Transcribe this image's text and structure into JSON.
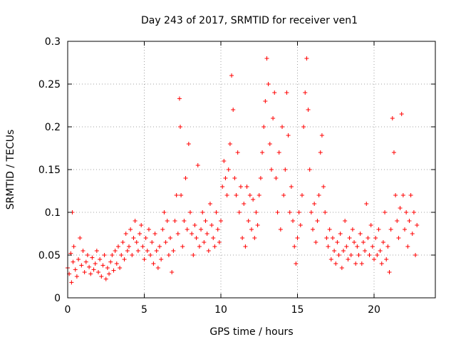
{
  "chart_data": {
    "type": "scatter",
    "title": "Day 243 of 2017, SRMTID for receiver ven1",
    "xlabel": "GPS time / hours",
    "ylabel": "SRMTID / TECUs",
    "xlim": [
      0,
      24
    ],
    "ylim": [
      0,
      0.3
    ],
    "xticks": [
      0,
      5,
      10,
      15,
      20
    ],
    "xtick_labels": [
      "0",
      "5",
      "10",
      "15",
      "20"
    ],
    "yticks": [
      0,
      0.05,
      0.1,
      0.15,
      0.2,
      0.25,
      0.3
    ],
    "ytick_labels": [
      "0",
      "0.05",
      "0.1",
      "0.15",
      "0.2",
      "0.25",
      "0.3"
    ],
    "grid": true,
    "marker": "+",
    "color": "#ff0000",
    "series": [
      {
        "name": "SRMTID ven1",
        "points": [
          [
            0.0,
            0.035
          ],
          [
            0.1,
            0.028
          ],
          [
            0.2,
            0.052
          ],
          [
            0.25,
            0.018
          ],
          [
            0.3,
            0.1
          ],
          [
            0.35,
            0.042
          ],
          [
            0.4,
            0.06
          ],
          [
            0.5,
            0.033
          ],
          [
            0.6,
            0.025
          ],
          [
            0.7,
            0.045
          ],
          [
            0.8,
            0.07
          ],
          [
            0.9,
            0.038
          ],
          [
            1.0,
            0.055
          ],
          [
            1.1,
            0.03
          ],
          [
            1.2,
            0.042
          ],
          [
            1.3,
            0.05
          ],
          [
            1.4,
            0.036
          ],
          [
            1.5,
            0.028
          ],
          [
            1.6,
            0.047
          ],
          [
            1.7,
            0.033
          ],
          [
            1.8,
            0.04
          ],
          [
            1.9,
            0.055
          ],
          [
            2.0,
            0.03
          ],
          [
            2.1,
            0.045
          ],
          [
            2.2,
            0.025
          ],
          [
            2.3,
            0.038
          ],
          [
            2.4,
            0.05
          ],
          [
            2.5,
            0.022
          ],
          [
            2.6,
            0.035
          ],
          [
            2.7,
            0.028
          ],
          [
            2.8,
            0.042
          ],
          [
            2.9,
            0.05
          ],
          [
            3.0,
            0.032
          ],
          [
            3.1,
            0.055
          ],
          [
            3.2,
            0.04
          ],
          [
            3.3,
            0.06
          ],
          [
            3.4,
            0.035
          ],
          [
            3.5,
            0.05
          ],
          [
            3.6,
            0.065
          ],
          [
            3.7,
            0.045
          ],
          [
            3.8,
            0.075
          ],
          [
            3.9,
            0.055
          ],
          [
            4.0,
            0.06
          ],
          [
            4.1,
            0.08
          ],
          [
            4.2,
            0.05
          ],
          [
            4.3,
            0.07
          ],
          [
            4.4,
            0.09
          ],
          [
            4.5,
            0.065
          ],
          [
            4.6,
            0.055
          ],
          [
            4.7,
            0.075
          ],
          [
            4.8,
            0.085
          ],
          [
            4.9,
            0.06
          ],
          [
            5.0,
            0.045
          ],
          [
            5.1,
            0.07
          ],
          [
            5.2,
            0.055
          ],
          [
            5.3,
            0.08
          ],
          [
            5.4,
            0.05
          ],
          [
            5.5,
            0.065
          ],
          [
            5.6,
            0.04
          ],
          [
            5.7,
            0.075
          ],
          [
            5.8,
            0.055
          ],
          [
            5.9,
            0.035
          ],
          [
            6.0,
            0.06
          ],
          [
            6.1,
            0.045
          ],
          [
            6.2,
            0.08
          ],
          [
            6.3,
            0.1
          ],
          [
            6.4,
            0.065
          ],
          [
            6.5,
            0.09
          ],
          [
            6.6,
            0.05
          ],
          [
            6.7,
            0.07
          ],
          [
            6.8,
            0.03
          ],
          [
            6.9,
            0.055
          ],
          [
            7.0,
            0.09
          ],
          [
            7.1,
            0.12
          ],
          [
            7.2,
            0.075
          ],
          [
            7.3,
            0.233
          ],
          [
            7.35,
            0.2
          ],
          [
            7.4,
            0.12
          ],
          [
            7.5,
            0.06
          ],
          [
            7.6,
            0.09
          ],
          [
            7.7,
            0.14
          ],
          [
            7.8,
            0.08
          ],
          [
            7.9,
            0.18
          ],
          [
            8.0,
            0.1
          ],
          [
            8.1,
            0.075
          ],
          [
            8.2,
            0.05
          ],
          [
            8.3,
            0.085
          ],
          [
            8.4,
            0.07
          ],
          [
            8.5,
            0.155
          ],
          [
            8.6,
            0.06
          ],
          [
            8.7,
            0.08
          ],
          [
            8.8,
            0.1
          ],
          [
            8.9,
            0.065
          ],
          [
            9.0,
            0.09
          ],
          [
            9.1,
            0.075
          ],
          [
            9.2,
            0.055
          ],
          [
            9.3,
            0.11
          ],
          [
            9.4,
            0.085
          ],
          [
            9.5,
            0.07
          ],
          [
            9.6,
            0.06
          ],
          [
            9.7,
            0.1
          ],
          [
            9.8,
            0.08
          ],
          [
            9.9,
            0.065
          ],
          [
            10.0,
            0.09
          ],
          [
            10.1,
            0.13
          ],
          [
            10.2,
            0.16
          ],
          [
            10.3,
            0.14
          ],
          [
            10.4,
            0.12
          ],
          [
            10.5,
            0.15
          ],
          [
            10.6,
            0.18
          ],
          [
            10.7,
            0.26
          ],
          [
            10.8,
            0.22
          ],
          [
            10.9,
            0.14
          ],
          [
            11.0,
            0.12
          ],
          [
            11.1,
            0.17
          ],
          [
            11.2,
            0.1
          ],
          [
            11.3,
            0.13
          ],
          [
            11.4,
            0.07
          ],
          [
            11.5,
            0.11
          ],
          [
            11.6,
            0.06
          ],
          [
            11.7,
            0.13
          ],
          [
            11.8,
            0.09
          ],
          [
            11.9,
            0.12
          ],
          [
            12.0,
            0.08
          ],
          [
            12.1,
            0.115
          ],
          [
            12.2,
            0.07
          ],
          [
            12.3,
            0.1
          ],
          [
            12.4,
            0.085
          ],
          [
            12.5,
            0.12
          ],
          [
            12.6,
            0.14
          ],
          [
            12.7,
            0.17
          ],
          [
            12.8,
            0.2
          ],
          [
            12.9,
            0.23
          ],
          [
            13.0,
            0.28
          ],
          [
            13.1,
            0.25
          ],
          [
            13.2,
            0.18
          ],
          [
            13.3,
            0.15
          ],
          [
            13.4,
            0.21
          ],
          [
            13.5,
            0.24
          ],
          [
            13.6,
            0.14
          ],
          [
            13.7,
            0.1
          ],
          [
            13.8,
            0.17
          ],
          [
            13.9,
            0.08
          ],
          [
            14.0,
            0.2
          ],
          [
            14.1,
            0.12
          ],
          [
            14.2,
            0.15
          ],
          [
            14.3,
            0.24
          ],
          [
            14.4,
            0.19
          ],
          [
            14.5,
            0.1
          ],
          [
            14.6,
            0.13
          ],
          [
            14.7,
            0.09
          ],
          [
            14.8,
            0.06
          ],
          [
            14.9,
            0.04
          ],
          [
            15.0,
            0.07
          ],
          [
            15.1,
            0.1
          ],
          [
            15.2,
            0.085
          ],
          [
            15.3,
            0.12
          ],
          [
            15.4,
            0.2
          ],
          [
            15.5,
            0.24
          ],
          [
            15.6,
            0.28
          ],
          [
            15.7,
            0.22
          ],
          [
            15.8,
            0.15
          ],
          [
            15.9,
            0.1
          ],
          [
            16.0,
            0.08
          ],
          [
            16.1,
            0.11
          ],
          [
            16.2,
            0.065
          ],
          [
            16.3,
            0.09
          ],
          [
            16.4,
            0.12
          ],
          [
            16.5,
            0.17
          ],
          [
            16.6,
            0.19
          ],
          [
            16.7,
            0.13
          ],
          [
            16.8,
            0.1
          ],
          [
            16.9,
            0.07
          ],
          [
            17.0,
            0.06
          ],
          [
            17.1,
            0.08
          ],
          [
            17.2,
            0.045
          ],
          [
            17.3,
            0.07
          ],
          [
            17.4,
            0.055
          ],
          [
            17.5,
            0.04
          ],
          [
            17.6,
            0.065
          ],
          [
            17.7,
            0.05
          ],
          [
            17.8,
            0.075
          ],
          [
            17.9,
            0.035
          ],
          [
            18.0,
            0.055
          ],
          [
            18.1,
            0.09
          ],
          [
            18.2,
            0.06
          ],
          [
            18.3,
            0.045
          ],
          [
            18.4,
            0.07
          ],
          [
            18.5,
            0.05
          ],
          [
            18.6,
            0.08
          ],
          [
            18.7,
            0.065
          ],
          [
            18.8,
            0.04
          ],
          [
            18.9,
            0.06
          ],
          [
            19.0,
            0.05
          ],
          [
            19.1,
            0.075
          ],
          [
            19.2,
            0.04
          ],
          [
            19.3,
            0.065
          ],
          [
            19.4,
            0.055
          ],
          [
            19.5,
            0.11
          ],
          [
            19.6,
            0.07
          ],
          [
            19.7,
            0.05
          ],
          [
            19.8,
            0.085
          ],
          [
            19.9,
            0.06
          ],
          [
            20.0,
            0.045
          ],
          [
            20.1,
            0.07
          ],
          [
            20.2,
            0.05
          ],
          [
            20.3,
            0.08
          ],
          [
            20.4,
            0.055
          ],
          [
            20.5,
            0.04
          ],
          [
            20.6,
            0.065
          ],
          [
            20.7,
            0.1
          ],
          [
            20.8,
            0.045
          ],
          [
            20.9,
            0.06
          ],
          [
            21.0,
            0.03
          ],
          [
            21.1,
            0.08
          ],
          [
            21.2,
            0.21
          ],
          [
            21.3,
            0.17
          ],
          [
            21.4,
            0.12
          ],
          [
            21.5,
            0.09
          ],
          [
            21.6,
            0.07
          ],
          [
            21.7,
            0.105
          ],
          [
            21.8,
            0.215
          ],
          [
            21.9,
            0.12
          ],
          [
            22.0,
            0.08
          ],
          [
            22.1,
            0.1
          ],
          [
            22.2,
            0.06
          ],
          [
            22.3,
            0.09
          ],
          [
            22.4,
            0.12
          ],
          [
            22.5,
            0.075
          ],
          [
            22.6,
            0.1
          ],
          [
            22.7,
            0.05
          ],
          [
            22.8,
            0.085
          ]
        ]
      }
    ]
  }
}
